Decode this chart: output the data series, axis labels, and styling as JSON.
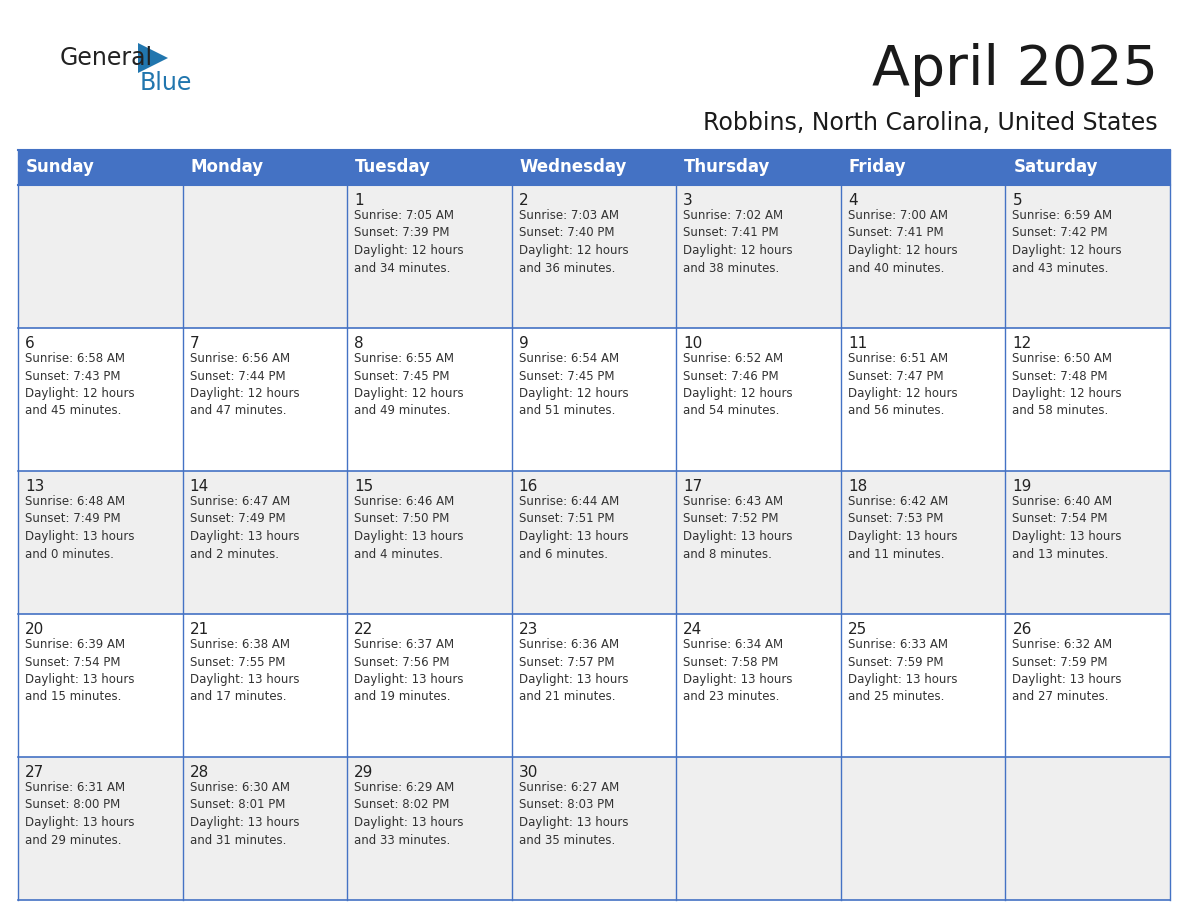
{
  "title": "April 2025",
  "subtitle": "Robbins, North Carolina, United States",
  "header_bg": "#4472C4",
  "header_text_color": "#FFFFFF",
  "days_of_week": [
    "Sunday",
    "Monday",
    "Tuesday",
    "Wednesday",
    "Thursday",
    "Friday",
    "Saturday"
  ],
  "row_bg_even": "#EFEFEF",
  "row_bg_odd": "#FFFFFF",
  "cell_text_color": "#333333",
  "border_color": "#4472C4",
  "calendar_data": [
    [
      {
        "day": "",
        "info": ""
      },
      {
        "day": "",
        "info": ""
      },
      {
        "day": "1",
        "info": "Sunrise: 7:05 AM\nSunset: 7:39 PM\nDaylight: 12 hours\nand 34 minutes."
      },
      {
        "day": "2",
        "info": "Sunrise: 7:03 AM\nSunset: 7:40 PM\nDaylight: 12 hours\nand 36 minutes."
      },
      {
        "day": "3",
        "info": "Sunrise: 7:02 AM\nSunset: 7:41 PM\nDaylight: 12 hours\nand 38 minutes."
      },
      {
        "day": "4",
        "info": "Sunrise: 7:00 AM\nSunset: 7:41 PM\nDaylight: 12 hours\nand 40 minutes."
      },
      {
        "day": "5",
        "info": "Sunrise: 6:59 AM\nSunset: 7:42 PM\nDaylight: 12 hours\nand 43 minutes."
      }
    ],
    [
      {
        "day": "6",
        "info": "Sunrise: 6:58 AM\nSunset: 7:43 PM\nDaylight: 12 hours\nand 45 minutes."
      },
      {
        "day": "7",
        "info": "Sunrise: 6:56 AM\nSunset: 7:44 PM\nDaylight: 12 hours\nand 47 minutes."
      },
      {
        "day": "8",
        "info": "Sunrise: 6:55 AM\nSunset: 7:45 PM\nDaylight: 12 hours\nand 49 minutes."
      },
      {
        "day": "9",
        "info": "Sunrise: 6:54 AM\nSunset: 7:45 PM\nDaylight: 12 hours\nand 51 minutes."
      },
      {
        "day": "10",
        "info": "Sunrise: 6:52 AM\nSunset: 7:46 PM\nDaylight: 12 hours\nand 54 minutes."
      },
      {
        "day": "11",
        "info": "Sunrise: 6:51 AM\nSunset: 7:47 PM\nDaylight: 12 hours\nand 56 minutes."
      },
      {
        "day": "12",
        "info": "Sunrise: 6:50 AM\nSunset: 7:48 PM\nDaylight: 12 hours\nand 58 minutes."
      }
    ],
    [
      {
        "day": "13",
        "info": "Sunrise: 6:48 AM\nSunset: 7:49 PM\nDaylight: 13 hours\nand 0 minutes."
      },
      {
        "day": "14",
        "info": "Sunrise: 6:47 AM\nSunset: 7:49 PM\nDaylight: 13 hours\nand 2 minutes."
      },
      {
        "day": "15",
        "info": "Sunrise: 6:46 AM\nSunset: 7:50 PM\nDaylight: 13 hours\nand 4 minutes."
      },
      {
        "day": "16",
        "info": "Sunrise: 6:44 AM\nSunset: 7:51 PM\nDaylight: 13 hours\nand 6 minutes."
      },
      {
        "day": "17",
        "info": "Sunrise: 6:43 AM\nSunset: 7:52 PM\nDaylight: 13 hours\nand 8 minutes."
      },
      {
        "day": "18",
        "info": "Sunrise: 6:42 AM\nSunset: 7:53 PM\nDaylight: 13 hours\nand 11 minutes."
      },
      {
        "day": "19",
        "info": "Sunrise: 6:40 AM\nSunset: 7:54 PM\nDaylight: 13 hours\nand 13 minutes."
      }
    ],
    [
      {
        "day": "20",
        "info": "Sunrise: 6:39 AM\nSunset: 7:54 PM\nDaylight: 13 hours\nand 15 minutes."
      },
      {
        "day": "21",
        "info": "Sunrise: 6:38 AM\nSunset: 7:55 PM\nDaylight: 13 hours\nand 17 minutes."
      },
      {
        "day": "22",
        "info": "Sunrise: 6:37 AM\nSunset: 7:56 PM\nDaylight: 13 hours\nand 19 minutes."
      },
      {
        "day": "23",
        "info": "Sunrise: 6:36 AM\nSunset: 7:57 PM\nDaylight: 13 hours\nand 21 minutes."
      },
      {
        "day": "24",
        "info": "Sunrise: 6:34 AM\nSunset: 7:58 PM\nDaylight: 13 hours\nand 23 minutes."
      },
      {
        "day": "25",
        "info": "Sunrise: 6:33 AM\nSunset: 7:59 PM\nDaylight: 13 hours\nand 25 minutes."
      },
      {
        "day": "26",
        "info": "Sunrise: 6:32 AM\nSunset: 7:59 PM\nDaylight: 13 hours\nand 27 minutes."
      }
    ],
    [
      {
        "day": "27",
        "info": "Sunrise: 6:31 AM\nSunset: 8:00 PM\nDaylight: 13 hours\nand 29 minutes."
      },
      {
        "day": "28",
        "info": "Sunrise: 6:30 AM\nSunset: 8:01 PM\nDaylight: 13 hours\nand 31 minutes."
      },
      {
        "day": "29",
        "info": "Sunrise: 6:29 AM\nSunset: 8:02 PM\nDaylight: 13 hours\nand 33 minutes."
      },
      {
        "day": "30",
        "info": "Sunrise: 6:27 AM\nSunset: 8:03 PM\nDaylight: 13 hours\nand 35 minutes."
      },
      {
        "day": "",
        "info": ""
      },
      {
        "day": "",
        "info": ""
      },
      {
        "day": "",
        "info": ""
      }
    ]
  ],
  "logo_general_color": "#222222",
  "logo_blue_color": "#2176AE",
  "logo_triangle_color": "#2176AE",
  "title_fontsize": 40,
  "subtitle_fontsize": 17,
  "header_fontsize": 12,
  "day_num_fontsize": 11,
  "info_fontsize": 8.5
}
